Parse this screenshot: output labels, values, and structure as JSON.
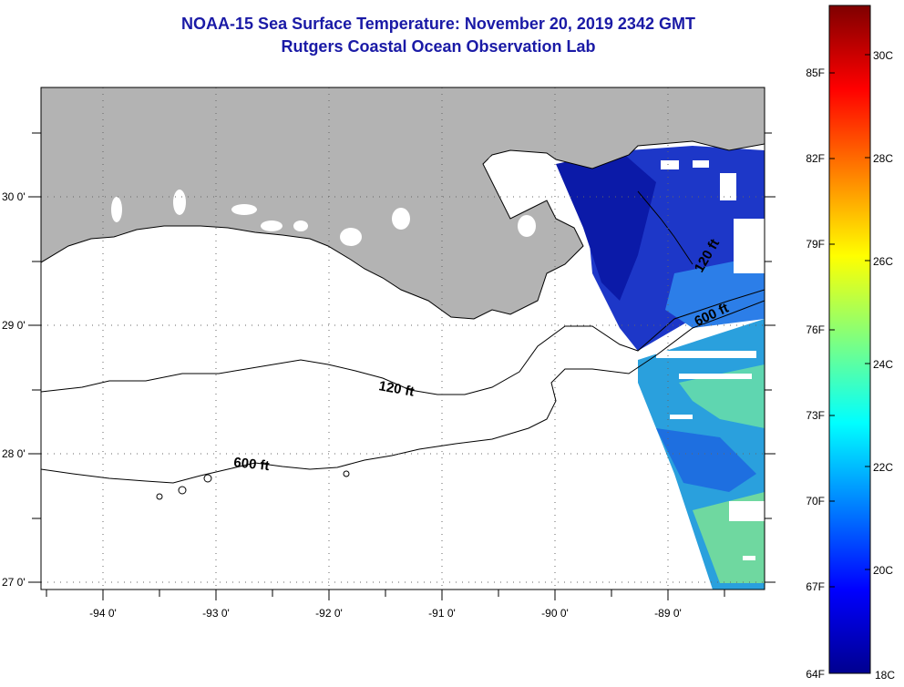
{
  "title": {
    "line1": "NOAA-15 Sea Surface Temperature:  November 20, 2019 2342 GMT",
    "line2": "Rutgers Coastal Ocean Observation Lab"
  },
  "map": {
    "lon_labels": [
      "-94 0'",
      "-93 0'",
      "-92 0'",
      "-91 0'",
      "-90 0'",
      "-89 0'"
    ],
    "lat_labels": [
      "30 0'",
      "29 0'",
      "28 0'",
      "27 0'"
    ],
    "contours": {
      "shelf_label": "120 ft",
      "slope_label": "600 ft"
    },
    "land_color": "#b3b3b3",
    "cloud_color": "#ffffff"
  },
  "colorbar": {
    "fahrenheit_labels": [
      "85F",
      "82F",
      "79F",
      "76F",
      "73F",
      "70F",
      "67F",
      "64F"
    ],
    "celsius_labels": [
      "30C",
      "28C",
      "26C",
      "24C",
      "22C",
      "20C",
      "18C"
    ],
    "colormap": "jet",
    "range_c": [
      18,
      31
    ]
  }
}
